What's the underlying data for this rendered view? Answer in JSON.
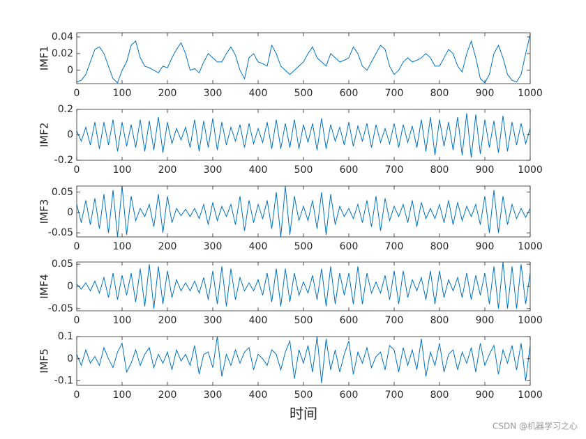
{
  "chart_data": [
    {
      "type": "line",
      "ylabel": "IMF1",
      "color": "#0072bd",
      "xlim": [
        0,
        1000
      ],
      "xticks": [
        0,
        100,
        200,
        300,
        400,
        500,
        600,
        700,
        800,
        900,
        1000
      ],
      "ylim": [
        -0.016,
        0.045
      ],
      "yticks": [
        0,
        0.02,
        0.04
      ],
      "x": [
        0,
        10,
        20,
        30,
        40,
        50,
        60,
        70,
        80,
        90,
        100,
        110,
        120,
        130,
        140,
        150,
        160,
        170,
        180,
        190,
        200,
        210,
        220,
        230,
        240,
        250,
        260,
        270,
        280,
        290,
        300,
        310,
        320,
        330,
        340,
        350,
        360,
        370,
        380,
        390,
        400,
        410,
        420,
        430,
        440,
        450,
        460,
        470,
        480,
        490,
        500,
        510,
        520,
        530,
        540,
        550,
        560,
        570,
        580,
        590,
        600,
        610,
        620,
        630,
        640,
        650,
        660,
        670,
        680,
        690,
        700,
        710,
        720,
        730,
        740,
        750,
        760,
        770,
        780,
        790,
        800,
        810,
        820,
        830,
        840,
        850,
        860,
        870,
        880,
        890,
        900,
        910,
        920,
        930,
        940,
        950,
        960,
        970,
        980,
        990,
        1000
      ],
      "values": [
        -0.014,
        -0.012,
        -0.005,
        0.01,
        0.025,
        0.028,
        0.02,
        0.005,
        -0.01,
        -0.015,
        0,
        0.01,
        0.03,
        0.035,
        0.015,
        0.005,
        0.003,
        0,
        -0.003,
        0.005,
        0.003,
        0.015,
        0.025,
        0.033,
        0.02,
        0,
        0.002,
        -0.003,
        0.01,
        0.02,
        0.015,
        0.01,
        0.01,
        0.02,
        0.028,
        0.018,
        0,
        -0.01,
        0.015,
        0.02,
        0.01,
        0.008,
        0.005,
        0.03,
        0.02,
        0.005,
        0,
        -0.005,
        0,
        0.005,
        0.01,
        0.02,
        0.028,
        0.015,
        0.01,
        0.005,
        0.02,
        0.015,
        0.01,
        0.012,
        0.015,
        0.028,
        0.02,
        0.005,
        0,
        0.01,
        0.02,
        0.03,
        0.025,
        0.005,
        -0.005,
        0,
        0.01,
        0.015,
        0.01,
        0.012,
        0.015,
        0.02,
        0.015,
        0.005,
        0.005,
        0.015,
        0.025,
        0.02,
        0.005,
        -0.002,
        0.02,
        0.035,
        0.015,
        -0.01,
        -0.015,
        -0.005,
        0.02,
        0.03,
        0.015,
        -0.005,
        -0.012,
        -0.014,
        -0.005,
        0.02,
        0.043
      ]
    },
    {
      "type": "line",
      "ylabel": "IMF2",
      "color": "#0072bd",
      "xlim": [
        0,
        1000
      ],
      "xticks": [
        0,
        100,
        200,
        300,
        400,
        500,
        600,
        700,
        800,
        900,
        1000
      ],
      "ylim": [
        -0.2,
        0.2
      ],
      "yticks": [
        -0.2,
        0,
        0.2
      ],
      "x": [
        0,
        10,
        20,
        30,
        40,
        50,
        60,
        70,
        80,
        90,
        100,
        110,
        120,
        130,
        140,
        150,
        160,
        170,
        180,
        190,
        200,
        210,
        220,
        230,
        240,
        250,
        260,
        270,
        280,
        290,
        300,
        310,
        320,
        330,
        340,
        350,
        360,
        370,
        380,
        390,
        400,
        410,
        420,
        430,
        440,
        450,
        460,
        470,
        480,
        490,
        500,
        510,
        520,
        530,
        540,
        550,
        560,
        570,
        580,
        590,
        600,
        610,
        620,
        630,
        640,
        650,
        660,
        670,
        680,
        690,
        700,
        710,
        720,
        730,
        740,
        750,
        760,
        770,
        780,
        790,
        800,
        810,
        820,
        830,
        840,
        850,
        860,
        870,
        880,
        890,
        900,
        910,
        920,
        930,
        940,
        950,
        960,
        970,
        980,
        990,
        1000
      ],
      "values": [
        0.03,
        -0.05,
        0.06,
        -0.08,
        0.1,
        -0.11,
        0.1,
        -0.08,
        0.12,
        -0.13,
        0.1,
        -0.09,
        0.08,
        -0.1,
        0.12,
        -0.13,
        0.11,
        -0.12,
        0.14,
        -0.14,
        0.1,
        -0.07,
        0.05,
        -0.04,
        0.06,
        -0.1,
        0.12,
        -0.13,
        0.11,
        -0.1,
        0.13,
        -0.12,
        0.1,
        -0.08,
        0.06,
        -0.05,
        0.08,
        -0.1,
        0.09,
        -0.07,
        0.05,
        -0.06,
        0.1,
        -0.11,
        0.12,
        -0.11,
        0.09,
        -0.1,
        0.12,
        -0.11,
        0.08,
        -0.06,
        0.09,
        -0.12,
        0.13,
        -0.11,
        0.08,
        -0.05,
        0.06,
        -0.08,
        0.1,
        -0.09,
        0.07,
        -0.05,
        0.09,
        -0.1,
        0.08,
        -0.06,
        0.05,
        -0.07,
        0.09,
        -0.1,
        0.08,
        -0.06,
        0.07,
        -0.1,
        0.12,
        -0.13,
        0.14,
        -0.16,
        0.12,
        -0.09,
        0.1,
        -0.12,
        0.14,
        -0.16,
        0.17,
        -0.18,
        0.16,
        -0.15,
        0.12,
        -0.1,
        0.11,
        -0.14,
        0.15,
        -0.13,
        0.1,
        -0.08,
        0.09,
        -0.07,
        0.05
      ]
    },
    {
      "type": "line",
      "ylabel": "IMF3",
      "color": "#0072bd",
      "xlim": [
        0,
        1000
      ],
      "xticks": [
        0,
        100,
        200,
        300,
        400,
        500,
        600,
        700,
        800,
        900,
        1000
      ],
      "ylim": [
        -0.06,
        0.065
      ],
      "yticks": [
        -0.05,
        0,
        0.05
      ],
      "x": [
        0,
        10,
        20,
        30,
        40,
        50,
        60,
        70,
        80,
        90,
        100,
        110,
        120,
        130,
        140,
        150,
        160,
        170,
        180,
        190,
        200,
        210,
        220,
        230,
        240,
        250,
        260,
        270,
        280,
        290,
        300,
        310,
        320,
        330,
        340,
        350,
        360,
        370,
        380,
        390,
        400,
        410,
        420,
        430,
        440,
        450,
        460,
        470,
        480,
        490,
        500,
        510,
        520,
        530,
        540,
        550,
        560,
        570,
        580,
        590,
        600,
        610,
        620,
        630,
        640,
        650,
        660,
        670,
        680,
        690,
        700,
        710,
        720,
        730,
        740,
        750,
        760,
        770,
        780,
        790,
        800,
        810,
        820,
        830,
        840,
        850,
        860,
        870,
        880,
        890,
        900,
        910,
        920,
        930,
        940,
        950,
        960,
        970,
        980,
        990,
        1000
      ],
      "values": [
        0.02,
        -0.025,
        0.03,
        -0.03,
        0.035,
        -0.04,
        0.045,
        -0.05,
        0.055,
        -0.06,
        0.065,
        -0.055,
        0.04,
        -0.02,
        0.01,
        -0.01,
        0.02,
        -0.035,
        0.045,
        -0.05,
        0.04,
        -0.025,
        0.01,
        -0.008,
        0.008,
        -0.01,
        0.01,
        -0.015,
        0.02,
        -0.03,
        0.025,
        -0.02,
        0.015,
        -0.01,
        0.02,
        -0.03,
        0.04,
        -0.045,
        0.03,
        -0.025,
        0.02,
        -0.015,
        0.03,
        -0.04,
        0.05,
        -0.06,
        0.065,
        -0.055,
        0.04,
        -0.02,
        0.015,
        -0.02,
        0.03,
        -0.04,
        0.05,
        -0.055,
        0.045,
        -0.03,
        0.015,
        -0.01,
        0.01,
        -0.015,
        0.02,
        -0.025,
        0.03,
        -0.035,
        0.04,
        -0.045,
        0.035,
        -0.02,
        0.015,
        -0.01,
        0.02,
        -0.025,
        0.03,
        -0.035,
        0.025,
        -0.015,
        0.01,
        -0.015,
        0.02,
        -0.025,
        0.03,
        -0.03,
        0.025,
        -0.02,
        0.015,
        -0.01,
        0.02,
        -0.03,
        0.04,
        -0.05,
        0.055,
        -0.05,
        0.04,
        -0.03,
        0.02,
        -0.015,
        0.01,
        -0.012,
        0.01
      ]
    },
    {
      "type": "line",
      "ylabel": "IMF4",
      "color": "#0072bd",
      "xlim": [
        0,
        1000
      ],
      "xticks": [
        0,
        100,
        200,
        300,
        400,
        500,
        600,
        700,
        800,
        900,
        1000
      ],
      "ylim": [
        -0.055,
        0.055
      ],
      "yticks": [
        -0.05,
        0,
        0.05
      ],
      "x": [
        0,
        10,
        20,
        30,
        40,
        50,
        60,
        70,
        80,
        90,
        100,
        110,
        120,
        130,
        140,
        150,
        160,
        170,
        180,
        190,
        200,
        210,
        220,
        230,
        240,
        250,
        260,
        270,
        280,
        290,
        300,
        310,
        320,
        330,
        340,
        350,
        360,
        370,
        380,
        390,
        400,
        410,
        420,
        430,
        440,
        450,
        460,
        470,
        480,
        490,
        500,
        510,
        520,
        530,
        540,
        550,
        560,
        570,
        580,
        590,
        600,
        610,
        620,
        630,
        640,
        650,
        660,
        670,
        680,
        690,
        700,
        710,
        720,
        730,
        740,
        750,
        760,
        770,
        780,
        790,
        800,
        810,
        820,
        830,
        840,
        850,
        860,
        870,
        880,
        890,
        900,
        910,
        920,
        930,
        940,
        950,
        960,
        970,
        980,
        990,
        1000
      ],
      "values": [
        0.005,
        -0.006,
        0.008,
        -0.01,
        0.012,
        -0.015,
        0.02,
        -0.025,
        0.03,
        -0.03,
        0.025,
        -0.02,
        0.03,
        -0.035,
        0.04,
        -0.045,
        0.05,
        -0.05,
        0.045,
        -0.04,
        0.035,
        -0.025,
        0.015,
        -0.01,
        0.008,
        -0.01,
        0.012,
        -0.015,
        0.02,
        -0.03,
        0.035,
        -0.04,
        0.045,
        -0.045,
        0.04,
        -0.03,
        0.02,
        -0.01,
        0.008,
        -0.01,
        0.015,
        -0.02,
        0.03,
        -0.035,
        0.04,
        -0.045,
        0.04,
        -0.035,
        0.03,
        -0.02,
        0.01,
        -0.015,
        0.025,
        -0.03,
        0.04,
        -0.045,
        0.045,
        -0.04,
        0.03,
        -0.02,
        0.03,
        -0.04,
        0.045,
        -0.04,
        0.03,
        -0.015,
        0.01,
        -0.015,
        0.025,
        -0.03,
        0.035,
        -0.04,
        0.035,
        -0.025,
        0.015,
        -0.01,
        0.02,
        -0.03,
        0.035,
        -0.04,
        0.035,
        -0.025,
        0.015,
        -0.01,
        0.02,
        -0.025,
        0.03,
        -0.03,
        0.025,
        -0.02,
        0.03,
        -0.04,
        0.045,
        -0.05,
        0.055,
        -0.05,
        0.045,
        -0.05,
        0.05,
        -0.04,
        0.03
      ]
    },
    {
      "type": "line",
      "ylabel": "IMF5",
      "xlabel": "时间",
      "color": "#0072bd",
      "xlim": [
        0,
        1000
      ],
      "xticks": [
        0,
        100,
        200,
        300,
        400,
        500,
        600,
        700,
        800,
        900,
        1000
      ],
      "ylim": [
        -0.12,
        0.1
      ],
      "yticks": [
        -0.1,
        0,
        0.1
      ],
      "x": [
        0,
        10,
        20,
        30,
        40,
        50,
        60,
        70,
        80,
        90,
        100,
        110,
        120,
        130,
        140,
        150,
        160,
        170,
        180,
        190,
        200,
        210,
        220,
        230,
        240,
        250,
        260,
        270,
        280,
        290,
        300,
        310,
        320,
        330,
        340,
        350,
        360,
        370,
        380,
        390,
        400,
        410,
        420,
        430,
        440,
        450,
        460,
        470,
        480,
        490,
        500,
        510,
        520,
        530,
        540,
        550,
        560,
        570,
        580,
        590,
        600,
        610,
        620,
        630,
        640,
        650,
        660,
        670,
        680,
        690,
        700,
        710,
        720,
        730,
        740,
        750,
        760,
        770,
        780,
        790,
        800,
        810,
        820,
        830,
        840,
        850,
        860,
        870,
        880,
        890,
        900,
        910,
        920,
        930,
        940,
        950,
        960,
        970,
        980,
        990,
        1000
      ],
      "values": [
        0.02,
        -0.03,
        0.04,
        -0.02,
        0.01,
        -0.03,
        0.05,
        0,
        -0.04,
        0.03,
        0.07,
        -0.06,
        -0.02,
        0.04,
        -0.03,
        0.02,
        0.05,
        -0.04,
        0.02,
        -0.02,
        0.03,
        -0.05,
        0.04,
        -0.01,
        0.02,
        -0.03,
        0.06,
        -0.07,
        0.02,
        0.03,
        -0.04,
        0.1,
        -0.08,
        0.02,
        -0.03,
        0.04,
        -0.02,
        0.03,
        0.05,
        -0.05,
        0.02,
        0,
        -0.03,
        0.04,
        0.02,
        -0.05,
        0.03,
        0.08,
        -0.09,
        0.04,
        -0.02,
        0.06,
        -0.06,
        0.1,
        -0.11,
        0.09,
        -0.05,
        0.04,
        -0.06,
        0.02,
        0.08,
        -0.07,
        0.03,
        -0.02,
        0.05,
        -0.04,
        0.01,
        0.03,
        -0.05,
        0.06,
        0.04,
        -0.06,
        0.05,
        -0.03,
        0.04,
        -0.05,
        0.09,
        -0.08,
        0.03,
        -0.03,
        0.07,
        -0.06,
        0.02,
        0.04,
        -0.05,
        0.03,
        -0.02,
        0.05,
        -0.06,
        0.07,
        -0.03,
        0.02,
        0.06,
        -0.07,
        0.04,
        -0.02,
        0.06,
        -0.05,
        0.07,
        -0.1,
        0.06
      ]
    }
  ],
  "watermark": "CSDN @机器学习之心"
}
